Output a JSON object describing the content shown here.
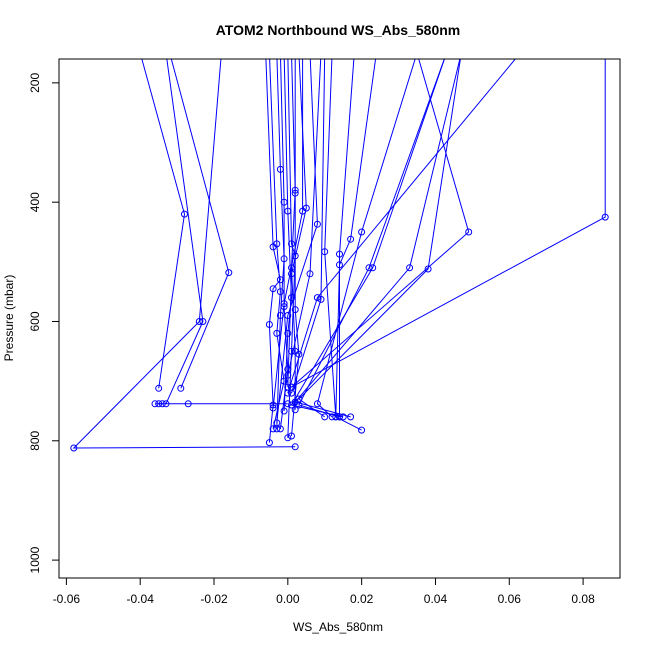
{
  "chart_data": {
    "type": "line",
    "title": "ATOM2 Northbound WS_Abs_580nm",
    "xlabel": "WS_Abs_580nm",
    "ylabel": "Pressure (mbar)",
    "xlim": [
      -0.062,
      0.09
    ],
    "ylim": [
      1030,
      160
    ],
    "y_reversed": true,
    "x_ticks": [
      -0.06,
      -0.04,
      -0.02,
      0.0,
      0.02,
      0.04,
      0.06,
      0.08
    ],
    "x_tick_labels": [
      "-0.06",
      "-0.04",
      "-0.02",
      "0.00",
      "0.02",
      "0.04",
      "0.06",
      "0.08"
    ],
    "y_ticks": [
      200,
      400,
      600,
      800,
      1000
    ],
    "y_tick_labels": [
      "200",
      "400",
      "600",
      "800",
      "1000"
    ],
    "grid": false,
    "color": "#0000ff",
    "marker": "open-circle",
    "series": [
      {
        "x": [
          -0.04,
          -0.028,
          -0.035
        ],
        "y": [
          150,
          420,
          712
        ]
      },
      {
        "x": [
          -0.032,
          -0.016,
          -0.029
        ],
        "y": [
          150,
          518,
          712
        ]
      },
      {
        "x": [
          -0.033,
          -0.023,
          -0.033
        ],
        "y": [
          150,
          600,
          738
        ]
      },
      {
        "x": [
          -0.018,
          -0.024,
          -0.058,
          0.002
        ],
        "y": [
          150,
          600,
          812,
          810
        ]
      },
      {
        "x": [
          -0.036,
          -0.027,
          0.0
        ],
        "y": [
          738,
          738,
          738
        ]
      },
      {
        "x": [
          -0.034,
          -0.035
        ],
        "y": [
          738,
          738
        ]
      },
      {
        "x": [
          -0.006,
          -0.004,
          -0.002,
          -0.004,
          -0.005,
          -0.004,
          -0.005
        ],
        "y": [
          150,
          475,
          530,
          545,
          605,
          740,
          803
        ]
      },
      {
        "x": [
          -0.005,
          -0.003,
          -0.002,
          -0.003,
          -0.001,
          -0.004
        ],
        "y": [
          150,
          470,
          550,
          620,
          700,
          780
        ]
      },
      {
        "x": [
          -0.003,
          -0.002,
          -0.001,
          -0.002,
          -0.003
        ],
        "y": [
          150,
          345,
          495,
          590,
          780
        ]
      },
      {
        "x": [
          -0.002,
          -0.001,
          -0.001,
          0.0,
          -0.002
        ],
        "y": [
          150,
          400,
          575,
          680,
          780
        ]
      },
      {
        "x": [
          -0.001,
          0.0,
          0.001,
          0.0,
          -0.001
        ],
        "y": [
          150,
          415,
          560,
          620,
          750
        ]
      },
      {
        "x": [
          0.0,
          0.001,
          0.002,
          0.001,
          0.0
        ],
        "y": [
          150,
          470,
          490,
          650,
          795
        ]
      },
      {
        "x": [
          0.001,
          0.002,
          0.001,
          0.002,
          0.002
        ],
        "y": [
          150,
          380,
          510,
          650,
          748
        ]
      },
      {
        "x": [
          0.002,
          0.002,
          0.002,
          0.003,
          0.001
        ],
        "y": [
          150,
          385,
          580,
          655,
          792
        ]
      },
      {
        "x": [
          0.003,
          0.005,
          0.001,
          0.0
        ],
        "y": [
          150,
          410,
          520,
          710
        ]
      },
      {
        "x": [
          0.004,
          0.004,
          -0.001,
          -0.004
        ],
        "y": [
          150,
          415,
          570,
          745
        ]
      },
      {
        "x": [
          0.006,
          0.008,
          0.0,
          -0.003
        ],
        "y": [
          150,
          437,
          590,
          770
        ]
      },
      {
        "x": [
          0.009,
          0.006,
          0.0
        ],
        "y": [
          150,
          520,
          690
        ]
      },
      {
        "x": [
          0.01,
          0.009,
          0.001
        ],
        "y": [
          150,
          563,
          720
        ]
      },
      {
        "x": [
          0.012,
          0.01,
          0.013,
          0.02
        ],
        "y": [
          150,
          483,
          760,
          782
        ]
      },
      {
        "x": [
          0.018,
          0.014,
          0.014
        ],
        "y": [
          150,
          487,
          760
        ]
      },
      {
        "x": [
          0.024,
          0.017,
          0.014,
          0.013
        ],
        "y": [
          150,
          462,
          505,
          760
        ]
      },
      {
        "x": [
          0.035,
          0.02,
          0.008,
          0.012
        ],
        "y": [
          150,
          450,
          738,
          760
        ]
      },
      {
        "x": [
          0.043,
          0.022,
          0.003,
          0.014
        ],
        "y": [
          150,
          510,
          740,
          760
        ]
      },
      {
        "x": [
          0.043,
          0.023,
          0.001,
          0.015
        ],
        "y": [
          150,
          510,
          740,
          760
        ]
      },
      {
        "x": [
          0.047,
          0.033,
          0.002,
          0.017
        ],
        "y": [
          150,
          510,
          735,
          760
        ]
      },
      {
        "x": [
          0.047,
          0.038,
          0.003,
          0.01
        ],
        "y": [
          150,
          512,
          730,
          760
        ]
      },
      {
        "x": [
          0.035,
          0.049,
          0.001
        ],
        "y": [
          150,
          450,
          710
        ]
      },
      {
        "x": [
          0.063,
          0.008,
          0.0
        ],
        "y": [
          150,
          560,
          720
        ]
      },
      {
        "x": [
          0.086,
          0.086,
          0.001
        ],
        "y": [
          150,
          425,
          710
        ]
      }
    ]
  }
}
